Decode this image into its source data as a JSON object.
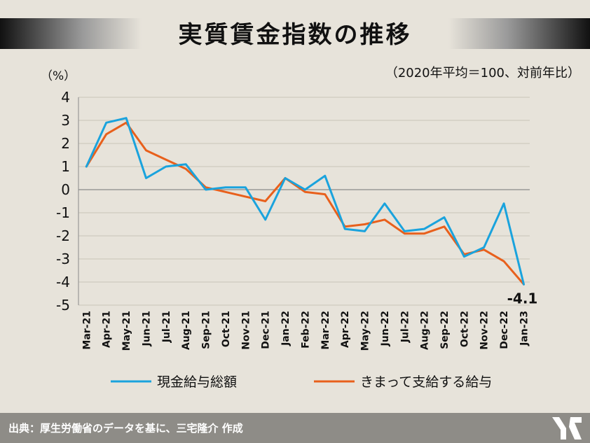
{
  "title": "実質賃金指数の推移",
  "subtitle": "（2020年平均＝100、対前年比）",
  "footer": {
    "source_text": "出典：厚生労働省のデータを基に、三宅隆介 作成"
  },
  "chart_data": {
    "type": "line",
    "ylabel": "（%）",
    "ylim": [
      -5,
      4
    ],
    "yticks": [
      4,
      3,
      2,
      1,
      0,
      -1,
      -2,
      -3,
      -4,
      -5
    ],
    "categories": [
      "Mar-21",
      "Apr-21",
      "May-21",
      "Jun-21",
      "Jul-21",
      "Aug-21",
      "Sep-21",
      "Oct-21",
      "Nov-21",
      "Dec-21",
      "Jan-22",
      "Feb-22",
      "Mar-22",
      "Apr-22",
      "May-22",
      "Jun-22",
      "Jul-22",
      "Aug-22",
      "Sep-22",
      "Oct-22",
      "Nov-22",
      "Dec-22",
      "Jan-23"
    ],
    "series": [
      {
        "name": "現金給与総額",
        "color": "#1aa3dd",
        "values": [
          1.0,
          2.9,
          3.1,
          0.5,
          1.0,
          1.1,
          0.0,
          0.1,
          0.1,
          -1.3,
          0.5,
          0.0,
          0.6,
          -1.7,
          -1.8,
          -0.6,
          -1.8,
          -1.7,
          -1.2,
          -2.9,
          -2.5,
          -0.6,
          -4.1
        ]
      },
      {
        "name": "きまって支給する給与",
        "color": "#e8601c",
        "values": [
          1.0,
          2.4,
          2.9,
          1.7,
          1.3,
          0.9,
          0.1,
          -0.1,
          -0.3,
          -0.5,
          0.5,
          -0.1,
          -0.2,
          -1.6,
          -1.5,
          -1.3,
          -1.9,
          -1.9,
          -1.6,
          -2.8,
          -2.6,
          -3.1,
          -4.1
        ]
      }
    ],
    "annotation": {
      "label": "-4.1",
      "category": "Jan-23",
      "value": -4.1
    },
    "grid": true
  }
}
